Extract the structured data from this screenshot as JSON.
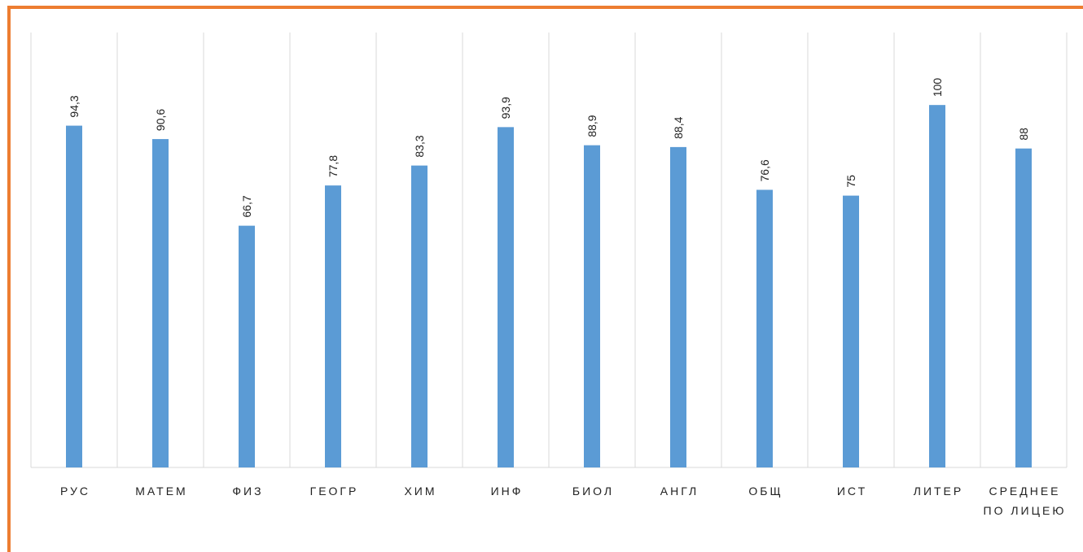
{
  "chart_data": {
    "type": "bar",
    "categories": [
      "РУС",
      "МАТЕМ",
      "ФИЗ",
      "ГЕОГР",
      "ХИМ",
      "ИНФ",
      "БИОЛ",
      "АНГЛ",
      "ОБЩ",
      "ИСТ",
      "ЛИТЕР",
      "СРЕДНЕЕ ПО ЛИЦЕЮ"
    ],
    "values": [
      94.3,
      90.6,
      66.7,
      77.8,
      83.3,
      93.9,
      88.9,
      88.4,
      76.6,
      75,
      100,
      88
    ],
    "value_labels": [
      "94,3",
      "90,6",
      "66,7",
      "77,8",
      "83,3",
      "93,9",
      "88,9",
      "88,4",
      "76,6",
      "75",
      "100",
      "88"
    ],
    "color": "#5b9bd5",
    "ylim": [
      0,
      120
    ]
  }
}
